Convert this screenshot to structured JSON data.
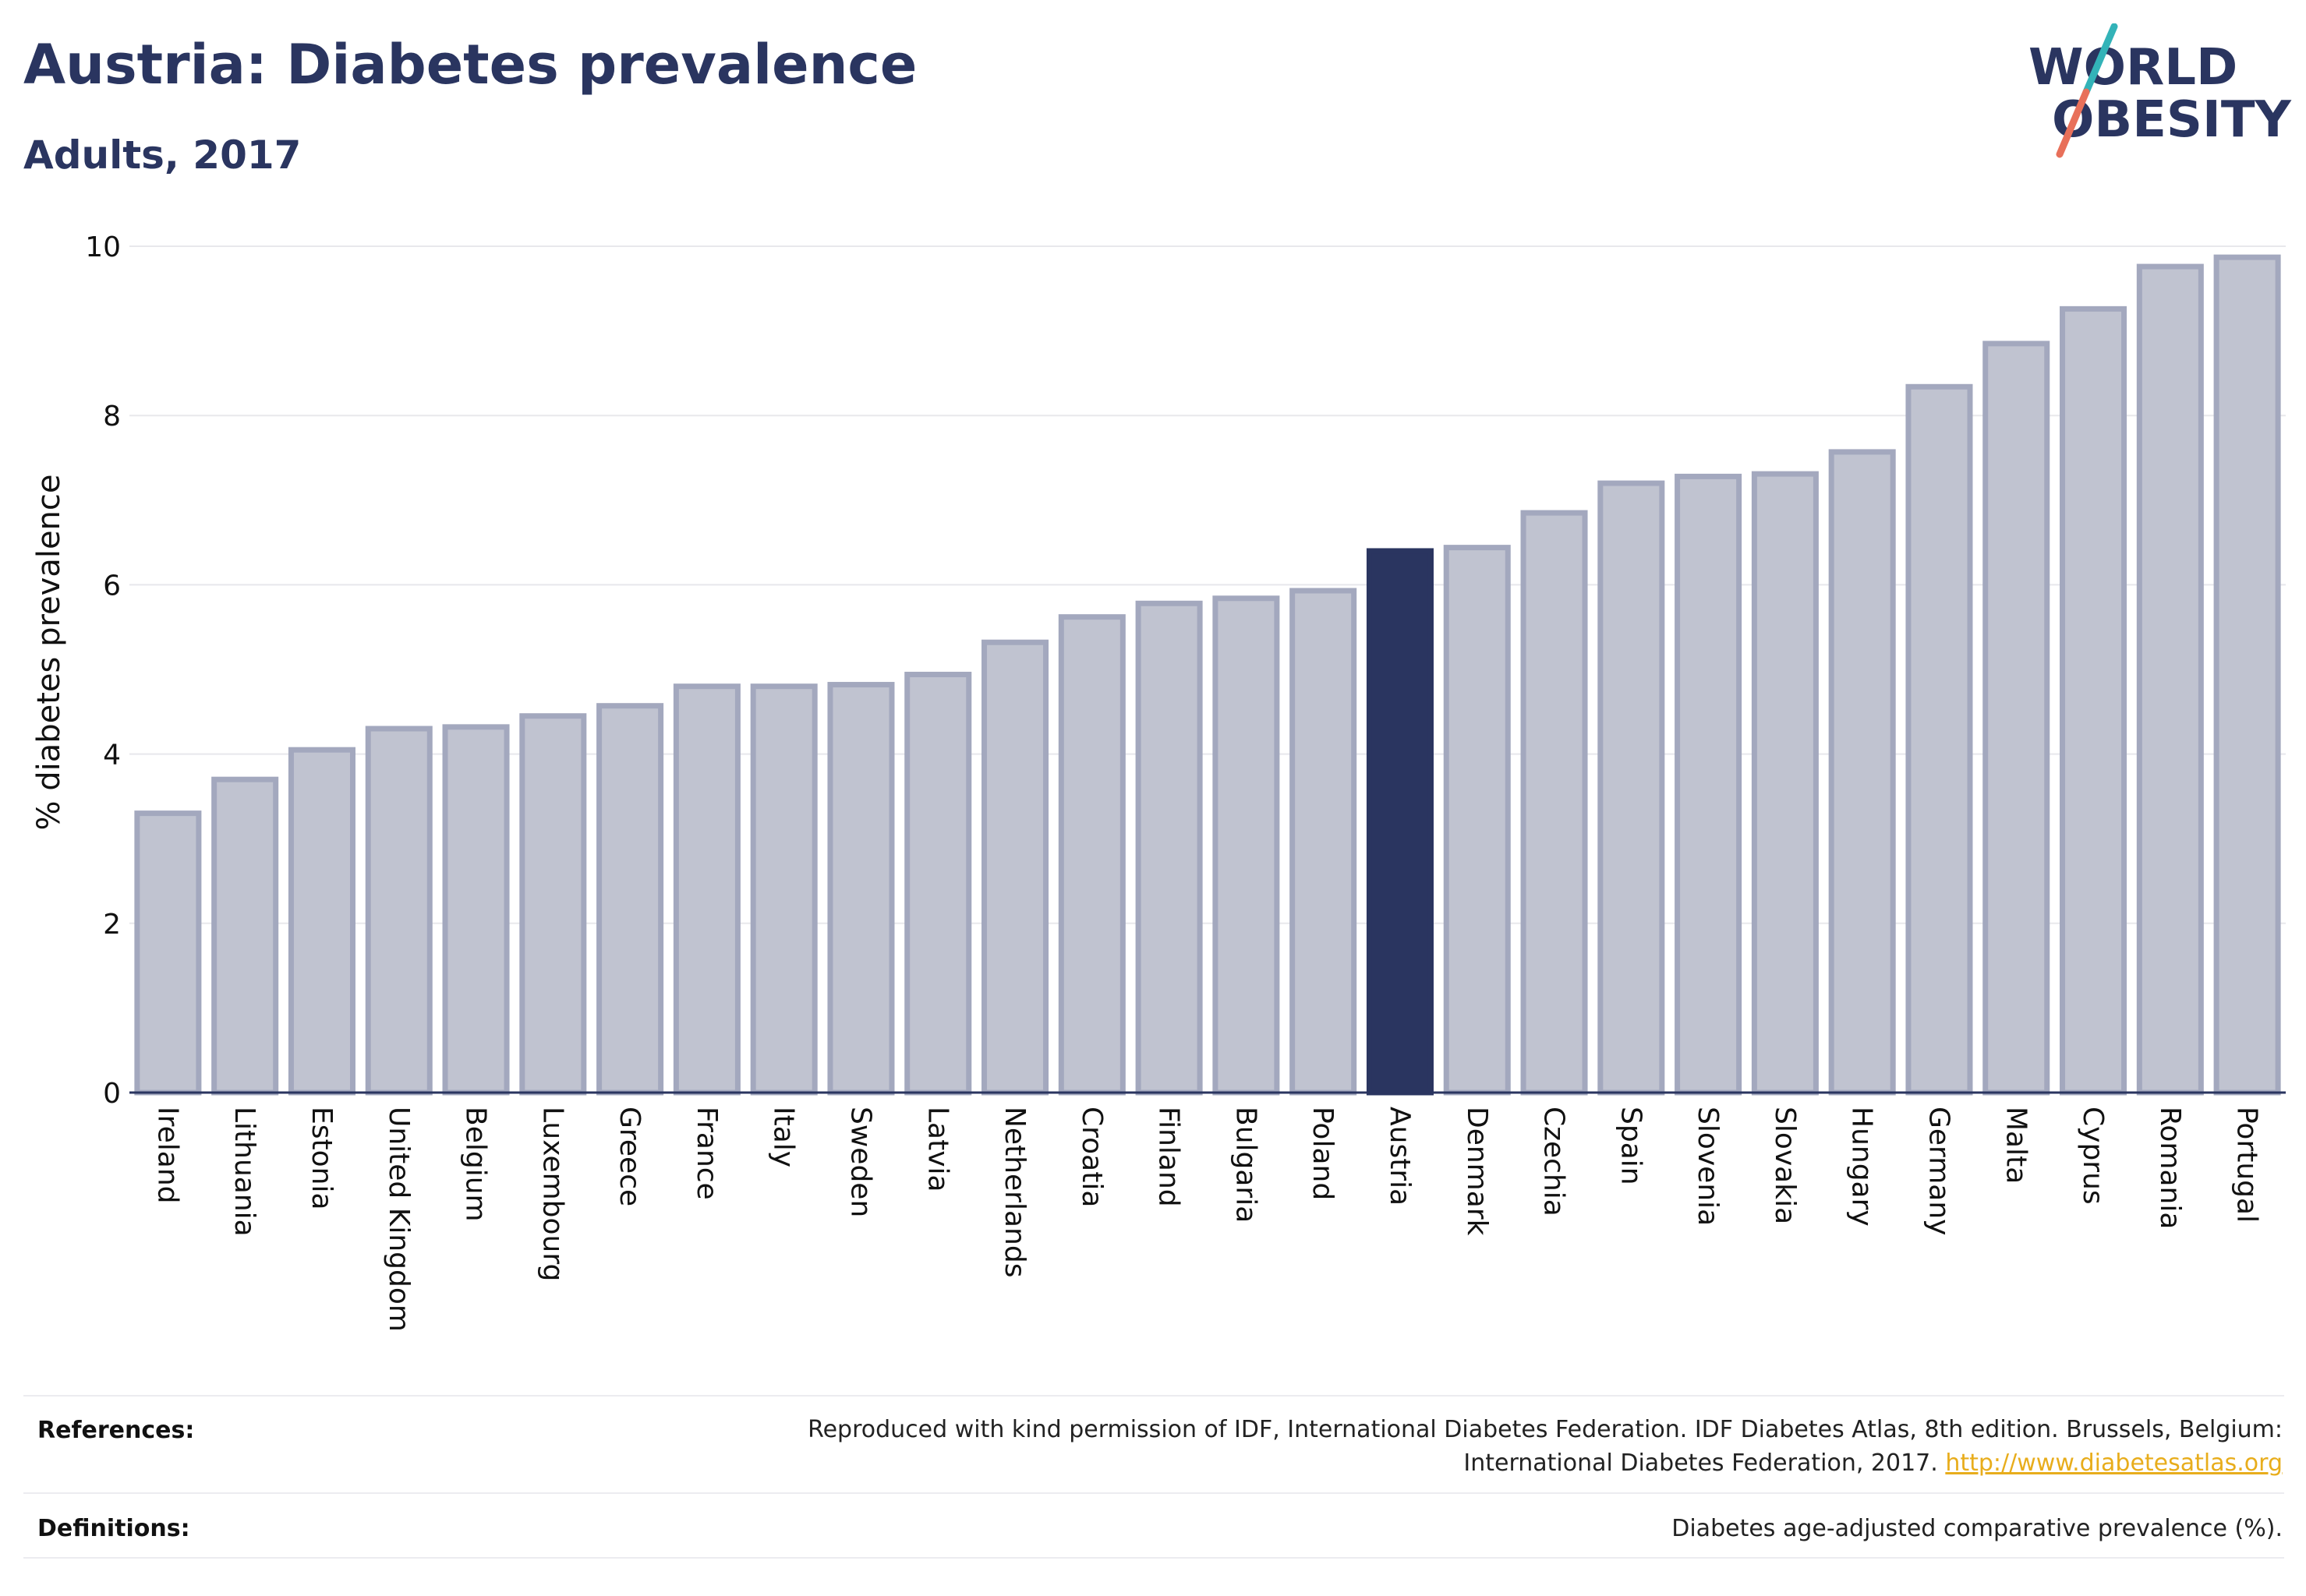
{
  "header": {
    "title": "Austria: Diabetes prevalence",
    "subtitle": "Adults, 2017"
  },
  "logo": {
    "line1": "WORLD",
    "line2": "OBESITY",
    "colors": {
      "text": "#2a3560",
      "slash_top": "#33b3b8",
      "slash_bottom": "#e8705a"
    }
  },
  "chart_data": {
    "type": "bar",
    "title": "Austria: Diabetes prevalence",
    "subtitle": "Adults, 2017",
    "xlabel": "",
    "ylabel": "% diabetes prevalence",
    "ylim": [
      0,
      10
    ],
    "yticks": [
      0,
      2,
      4,
      6,
      8,
      10
    ],
    "grid": true,
    "highlight": "Austria",
    "colors": {
      "bar": "#c0c3d0",
      "bar_edge": "#a3a8be",
      "highlight": "#2a3560",
      "axis": "#2a3560",
      "grid": "#e8e8ec"
    },
    "categories": [
      "Ireland",
      "Lithuania",
      "Estonia",
      "United Kingdom",
      "Belgium",
      "Luxembourg",
      "Greece",
      "France",
      "Italy",
      "Sweden",
      "Latvia",
      "Netherlands",
      "Croatia",
      "Finland",
      "Bulgaria",
      "Poland",
      "Austria",
      "Denmark",
      "Czechia",
      "Spain",
      "Slovenia",
      "Slovakia",
      "Hungary",
      "Germany",
      "Malta",
      "Cyprus",
      "Romania",
      "Portugal"
    ],
    "values": [
      3.3,
      3.7,
      4.05,
      4.3,
      4.32,
      4.45,
      4.57,
      4.8,
      4.8,
      4.82,
      4.94,
      5.32,
      5.62,
      5.78,
      5.84,
      5.93,
      6.4,
      6.44,
      6.85,
      7.2,
      7.28,
      7.31,
      7.57,
      8.34,
      8.85,
      9.26,
      9.76,
      9.87
    ]
  },
  "footer": {
    "references_label": "References:",
    "references_line1": "Reproduced with kind permission of IDF, International Diabetes Federation. IDF Diabetes Atlas, 8th edition. Brussels, Belgium:",
    "references_line2": "International Diabetes Federation, 2017.",
    "references_link": "http://www.diabetesatlas.org",
    "definitions_label": "Definitions:",
    "definitions_text": "Diabetes age-adjusted comparative prevalence (%)."
  }
}
